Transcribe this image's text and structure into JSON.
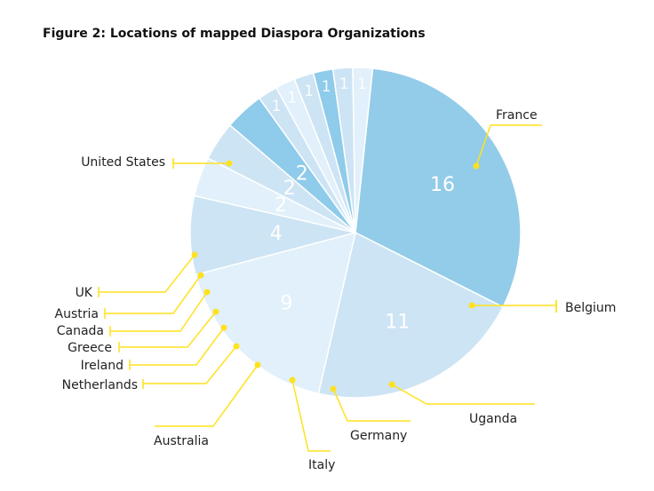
{
  "chart_data": {
    "type": "pie",
    "title": "Figure 2: Locations of mapped Diaspora Organizations",
    "categories": [
      "United States",
      "France",
      "Belgium",
      "Uganda",
      "Germany",
      "Italy",
      "Australia",
      "Netherlands",
      "Ireland",
      "Greece",
      "Canada",
      "Austria",
      "UK"
    ],
    "values": [
      16,
      11,
      9,
      4,
      2,
      2,
      2,
      1,
      1,
      1,
      1,
      1,
      1
    ],
    "slice_colors": [
      "#92cce9",
      "#cde4f4",
      "#e1f0fa",
      "#cde4f4",
      "#e1f0fa",
      "#cde4f4",
      "#8fcbea",
      "#cde4f4",
      "#e1f0fa",
      "#cde4f4",
      "#8fcbea",
      "#cde4f4",
      "#e1f0fa"
    ],
    "leader_color": "#ffe11f",
    "legend": "none"
  }
}
